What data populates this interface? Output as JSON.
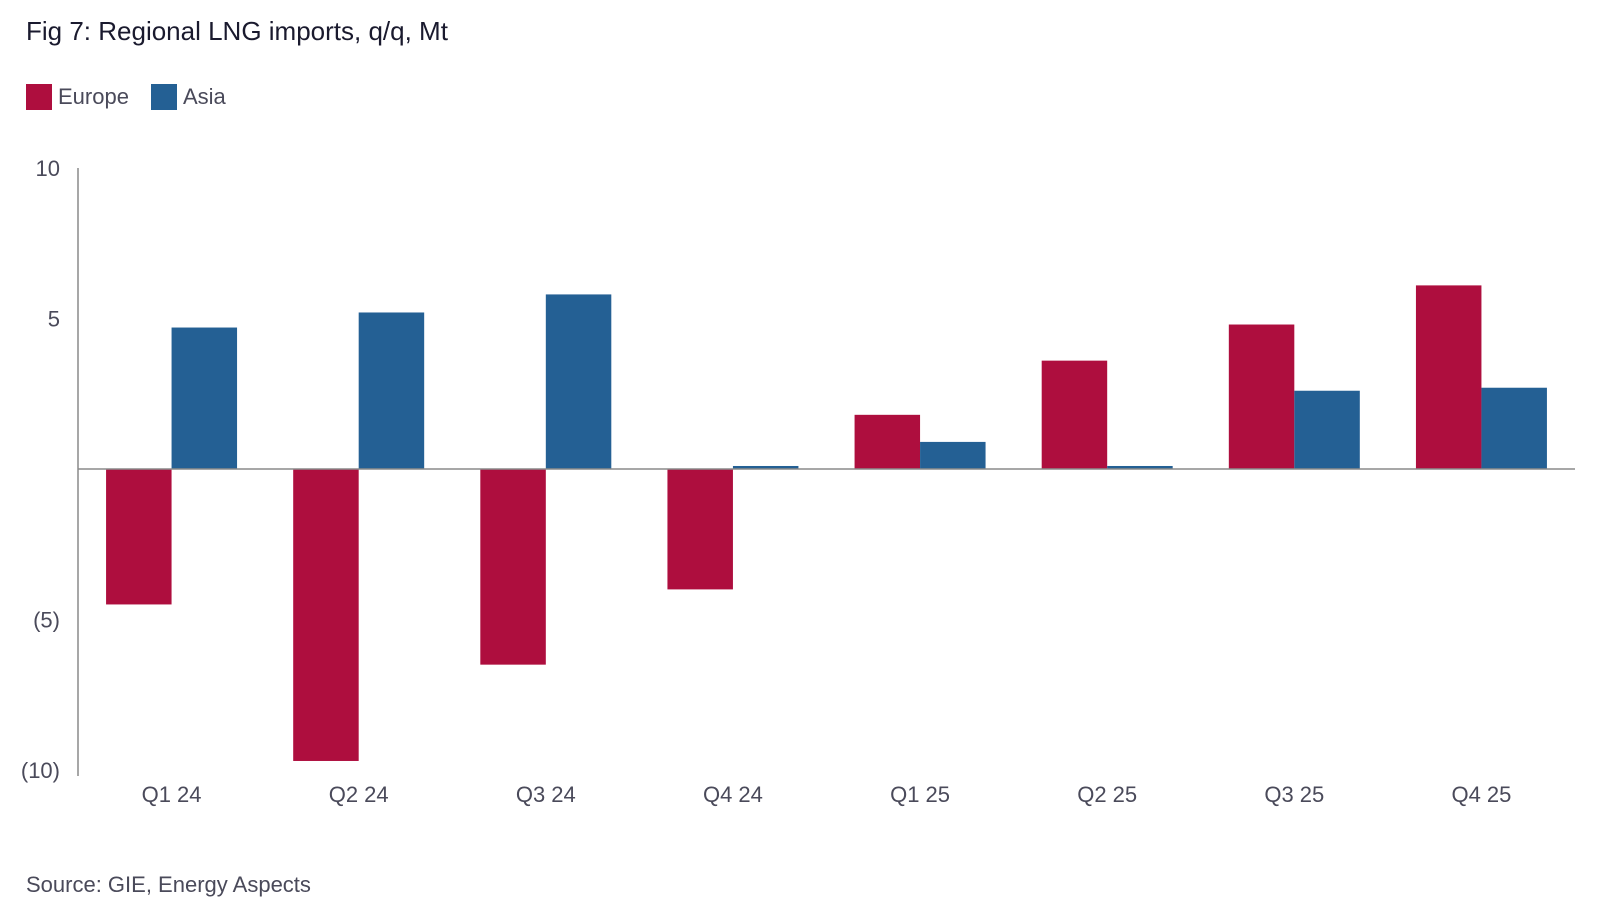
{
  "title": "Fig 7: Regional LNG imports, q/q, Mt",
  "source": "Source: GIE, Energy Aspects",
  "legend": [
    {
      "name": "Europe",
      "color": "#AE0E3E"
    },
    {
      "name": "Asia",
      "color": "#246094"
    }
  ],
  "chart_data": {
    "type": "bar",
    "title": "Fig 7: Regional LNG imports, q/q, Mt",
    "xlabel": "",
    "ylabel": "Mt",
    "ylim": [
      -10,
      10
    ],
    "yticks": [
      10,
      5,
      -5,
      -10
    ],
    "ytick_labels": [
      "10",
      "5",
      "(5)",
      "(10)"
    ],
    "categories": [
      "Q1 24",
      "Q2 24",
      "Q3 24",
      "Q4 24",
      "Q1 25",
      "Q2 25",
      "Q3 25",
      "Q4 25"
    ],
    "series": [
      {
        "name": "Europe",
        "color": "#AE0E3E",
        "values": [
          -4.5,
          -9.7,
          -6.5,
          -4.0,
          1.8,
          3.6,
          4.8,
          6.1
        ]
      },
      {
        "name": "Asia",
        "color": "#246094",
        "values": [
          4.7,
          5.2,
          5.8,
          0.1,
          0.9,
          0.1,
          2.6,
          2.7
        ]
      }
    ],
    "legend_position": "top-left",
    "grid": false
  }
}
